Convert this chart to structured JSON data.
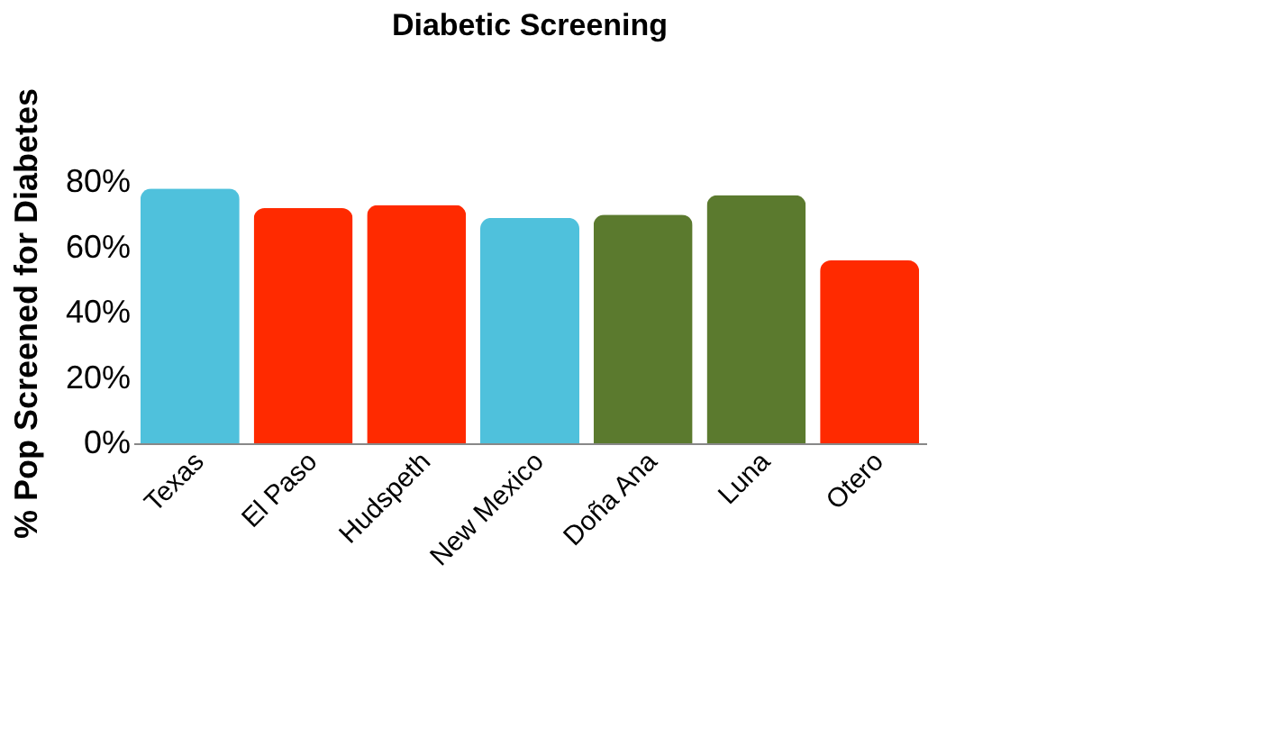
{
  "chart_data": {
    "type": "bar",
    "title": "Diabetic Screening",
    "ylabel": "% Pop Screened for Diabetes",
    "categories": [
      "Texas",
      "El Paso",
      "Hudspeth",
      "New Mexico",
      "Doña Ana",
      "Luna",
      "Otero"
    ],
    "values": [
      78,
      72,
      73,
      69,
      70,
      76,
      56
    ],
    "colors": [
      "#4fc1dc",
      "#ff2a00",
      "#ff2a00",
      "#4fc1dc",
      "#5b7a2e",
      "#5b7a2e",
      "#ff2a00"
    ],
    "ylim": [
      0,
      80
    ],
    "yticks": [
      {
        "value": 0,
        "label": "0%"
      },
      {
        "value": 20,
        "label": "20%"
      },
      {
        "value": 40,
        "label": "40%"
      },
      {
        "value": 60,
        "label": "60%"
      },
      {
        "value": 80,
        "label": "80%"
      }
    ],
    "grid": false
  }
}
